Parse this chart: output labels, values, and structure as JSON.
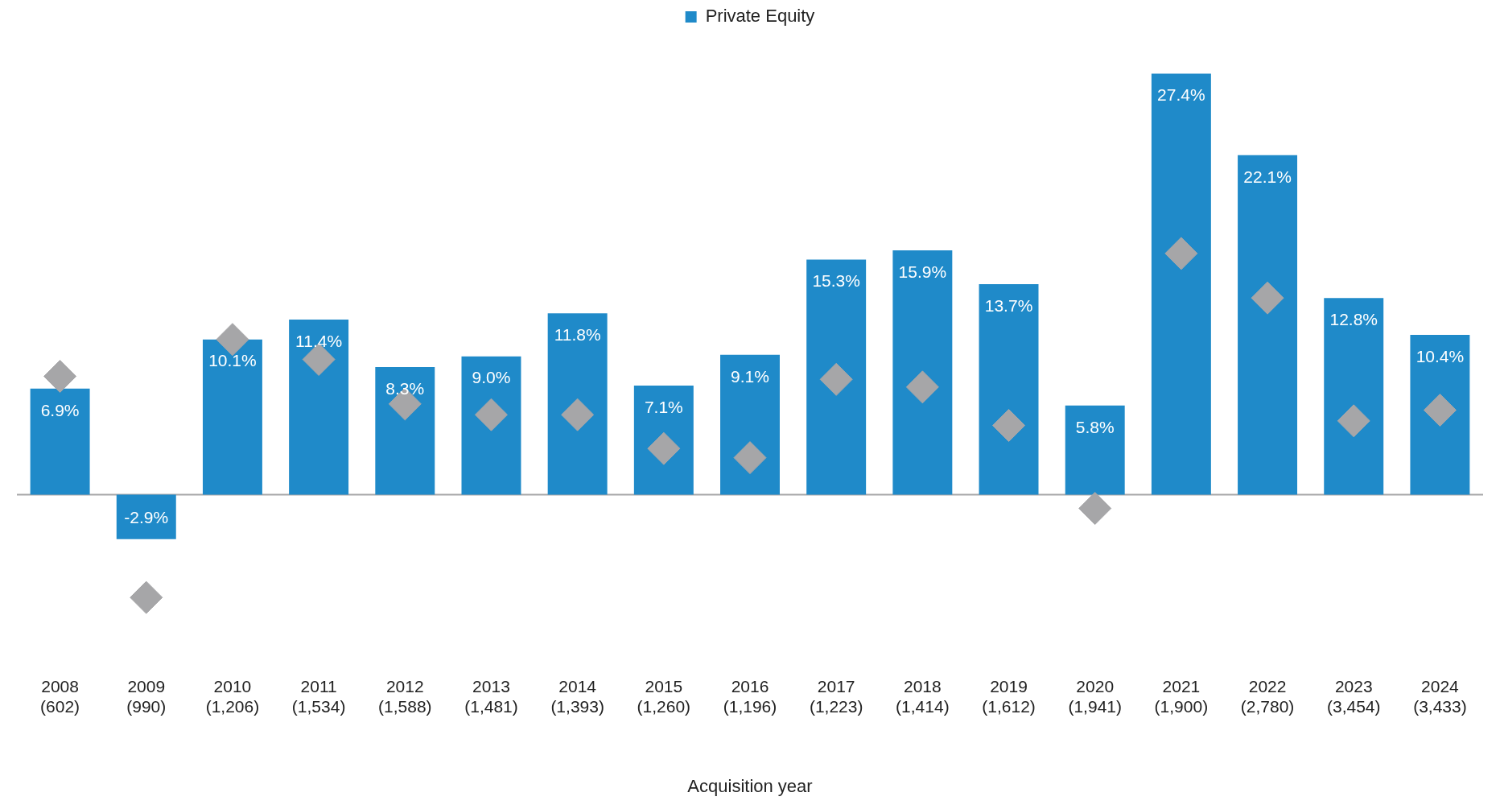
{
  "chart_data": {
    "type": "bar",
    "xlabel": "Acquisition year",
    "legend": "top",
    "categories": [
      "2008\n(602)",
      "2009\n(990)",
      "2010\n(1,206)",
      "2011\n(1,534)",
      "2012\n(1,588)",
      "2013\n(1,481)",
      "2014\n(1,393)",
      "2015\n(1,260)",
      "2016\n(1,196)",
      "2017\n(1,223)",
      "2018\n(1,414)",
      "2019\n(1,612)",
      "2020\n(1,941)",
      "2021\n(1,900)",
      "2022\n(2,780)",
      "2023\n(3,454)",
      "2024\n(3,433)"
    ],
    "series": [
      {
        "name": "Private Equity",
        "color": "#1f8ac9",
        "values": [
          6.9,
          -2.9,
          10.1,
          11.4,
          8.3,
          9.0,
          11.8,
          7.1,
          9.1,
          15.3,
          15.9,
          13.7,
          5.8,
          27.4,
          22.1,
          12.8,
          10.4
        ],
        "value_labels": [
          "6.9%",
          "-2.9%",
          "10.1%",
          "11.4%",
          "8.3%",
          "9.0%",
          "11.8%",
          "7.1%",
          "9.1%",
          "15.3%",
          "15.9%",
          "13.7%",
          "5.8%",
          "27.4%",
          "22.1%",
          "12.8%",
          "10.4%"
        ]
      },
      {
        "type": "scatter",
        "color": "#a6a6a8",
        "marker": "diamond",
        "values": [
          7.7,
          -6.7,
          10.1,
          8.8,
          5.9,
          5.2,
          5.2,
          3.0,
          2.4,
          7.5,
          7.0,
          4.5,
          -0.9,
          15.7,
          12.8,
          4.8,
          5.5
        ]
      }
    ]
  }
}
